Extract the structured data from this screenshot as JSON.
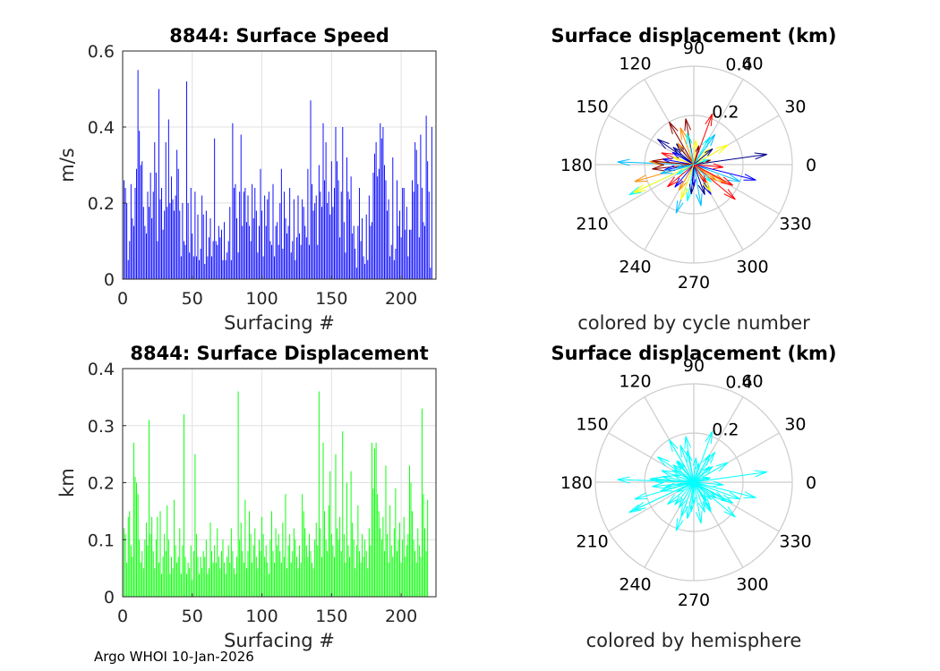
{
  "footer": "Argo WHOI 10-Jan-2026",
  "chart_data": [
    {
      "type": "bar",
      "title": "8844: Surface Speed",
      "xlabel": "Surfacing #",
      "ylabel": "m/s",
      "xlim": [
        0,
        225
      ],
      "ylim": [
        0,
        0.6
      ],
      "xticks": [
        "0",
        "50",
        "100",
        "150",
        "200"
      ],
      "xtick_values": [
        0,
        50,
        100,
        150,
        200
      ],
      "yticks": [
        "0",
        "0.2",
        "0.4",
        "0.6"
      ],
      "ytick_values": [
        0,
        0.2,
        0.4,
        0.6
      ],
      "color": "#0000ff",
      "values": [
        0.26,
        0.24,
        0.2,
        0.05,
        0.1,
        0.25,
        0.16,
        0.14,
        0.24,
        0.29,
        0.55,
        0.39,
        0.3,
        0.31,
        0.19,
        0.14,
        0.12,
        0.23,
        0.19,
        0.28,
        0.16,
        0.23,
        0.36,
        0.28,
        0.1,
        0.5,
        0.21,
        0.24,
        0.13,
        0.18,
        0.36,
        0.19,
        0.42,
        0.2,
        0.27,
        0.21,
        0.18,
        0.22,
        0.34,
        0.29,
        0.18,
        0.06,
        0.2,
        0.1,
        0.09,
        0.52,
        0.2,
        0.07,
        0.24,
        0.12,
        0.06,
        0.23,
        0.06,
        0.17,
        0.05,
        0.08,
        0.22,
        0.17,
        0.04,
        0.18,
        0.06,
        0.11,
        0.16,
        0.06,
        0.1,
        0.37,
        0.1,
        0.09,
        0.14,
        0.11,
        0.13,
        0.05,
        0.15,
        0.05,
        0.07,
        0.1,
        0.19,
        0.05,
        0.41,
        0.24,
        0.25,
        0.16,
        0.07,
        0.23,
        0.38,
        0.14,
        0.23,
        0.24,
        0.15,
        0.22,
        0.14,
        0.1,
        0.25,
        0.16,
        0.24,
        0.18,
        0.07,
        0.14,
        0.29,
        0.18,
        0.06,
        0.22,
        0.14,
        0.21,
        0.23,
        0.1,
        0.09,
        0.25,
        0.06,
        0.14,
        0.15,
        0.09,
        0.2,
        0.29,
        0.08,
        0.23,
        0.16,
        0.12,
        0.14,
        0.24,
        0.07,
        0.1,
        0.21,
        0.05,
        0.11,
        0.22,
        0.12,
        0.09,
        0.21,
        0.19,
        0.14,
        0.11,
        0.29,
        0.09,
        0.47,
        0.25,
        0.18,
        0.2,
        0.22,
        0.09,
        0.3,
        0.23,
        0.19,
        0.41,
        0.26,
        0.36,
        0.2,
        0.23,
        0.17,
        0.31,
        0.19,
        0.24,
        0.4,
        0.31,
        0.26,
        0.11,
        0.23,
        0.4,
        0.15,
        0.07,
        0.32,
        0.23,
        0.21,
        0.27,
        0.12,
        0.14,
        0.08,
        0.03,
        0.14,
        0.24,
        0.1,
        0.16,
        0.06,
        0.04,
        0.17,
        0.05,
        0.22,
        0.14,
        0.15,
        0.28,
        0.33,
        0.36,
        0.27,
        0.29,
        0.41,
        0.37,
        0.4,
        0.3,
        0.26,
        0.18,
        0.21,
        0.06,
        0.09,
        0.32,
        0.05,
        0.08,
        0.26,
        0.14,
        0.18,
        0.11,
        0.24,
        0.24,
        0.13,
        0.19,
        0.06,
        0.13,
        0.13,
        0.26,
        0.23,
        0.36,
        0.34,
        0.25,
        0.11,
        0.38,
        0.24,
        0.15,
        0.14,
        0.43,
        0.31,
        0.23,
        0.03,
        0.4
      ]
    },
    {
      "type": "bar",
      "title": "8844: Surface Displacement",
      "xlabel": "Surfacing #",
      "ylabel": "km",
      "xlim": [
        0,
        225
      ],
      "ylim": [
        0,
        0.4
      ],
      "xticks": [
        "0",
        "50",
        "100",
        "150",
        "200"
      ],
      "xtick_values": [
        0,
        50,
        100,
        150,
        200
      ],
      "yticks": [
        "0",
        "0.1",
        "0.2",
        "0.3",
        "0.4"
      ],
      "ytick_values": [
        0,
        0.1,
        0.2,
        0.3,
        0.4
      ],
      "color": "#00ff00",
      "values": [
        0.12,
        0.11,
        0.06,
        0.14,
        0.15,
        0.09,
        0.07,
        0.27,
        0.21,
        0.2,
        0.18,
        0.1,
        0.06,
        0.08,
        0.05,
        0.1,
        0.13,
        0.09,
        0.31,
        0.11,
        0.14,
        0.08,
        0.05,
        0.1,
        0.14,
        0.06,
        0.15,
        0.04,
        0.07,
        0.11,
        0.08,
        0.16,
        0.1,
        0.04,
        0.07,
        0.05,
        0.17,
        0.09,
        0.06,
        0.07,
        0.12,
        0.04,
        0.09,
        0.32,
        0.07,
        0.04,
        0.06,
        0.05,
        0.09,
        0.03,
        0.08,
        0.25,
        0.11,
        0.07,
        0.04,
        0.07,
        0.05,
        0.08,
        0.07,
        0.1,
        0.04,
        0.05,
        0.13,
        0.08,
        0.06,
        0.09,
        0.06,
        0.12,
        0.07,
        0.05,
        0.08,
        0.1,
        0.06,
        0.04,
        0.07,
        0.09,
        0.06,
        0.12,
        0.08,
        0.05,
        0.04,
        0.07,
        0.36,
        0.1,
        0.13,
        0.08,
        0.06,
        0.17,
        0.05,
        0.08,
        0.15,
        0.11,
        0.06,
        0.09,
        0.12,
        0.07,
        0.05,
        0.1,
        0.08,
        0.14,
        0.11,
        0.07,
        0.09,
        0.06,
        0.04,
        0.1,
        0.15,
        0.08,
        0.06,
        0.12,
        0.09,
        0.11,
        0.08,
        0.06,
        0.13,
        0.07,
        0.18,
        0.05,
        0.09,
        0.11,
        0.06,
        0.08,
        0.12,
        0.1,
        0.07,
        0.05,
        0.09,
        0.06,
        0.18,
        0.15,
        0.12,
        0.09,
        0.07,
        0.11,
        0.08,
        0.06,
        0.05,
        0.1,
        0.13,
        0.09,
        0.36,
        0.12,
        0.07,
        0.27,
        0.15,
        0.1,
        0.08,
        0.16,
        0.22,
        0.11,
        0.09,
        0.07,
        0.25,
        0.12,
        0.1,
        0.14,
        0.08,
        0.29,
        0.11,
        0.06,
        0.2,
        0.09,
        0.07,
        0.22,
        0.13,
        0.1,
        0.05,
        0.09,
        0.16,
        0.08,
        0.06,
        0.11,
        0.07,
        0.1,
        0.08,
        0.05,
        0.12,
        0.09,
        0.27,
        0.19,
        0.26,
        0.27,
        0.18,
        0.15,
        0.12,
        0.1,
        0.14,
        0.08,
        0.23,
        0.11,
        0.06,
        0.16,
        0.09,
        0.07,
        0.12,
        0.19,
        0.08,
        0.1,
        0.13,
        0.06,
        0.1,
        0.14,
        0.07,
        0.09,
        0.11,
        0.23,
        0.2,
        0.15,
        0.1,
        0.08,
        0.06,
        0.12,
        0.09,
        0.07,
        0.33,
        0.18,
        0.12,
        0.08,
        0.17
      ]
    },
    {
      "type": "polar",
      "title": "Surface displacement (km)",
      "caption": "colored by cycle number",
      "rmax": 0.4,
      "rticks": [
        "0.2",
        "0.4"
      ],
      "rtick_values": [
        0.2,
        0.4
      ],
      "angle_ticks": [
        "0",
        "30",
        "60",
        "90",
        "120",
        "150",
        "180",
        "210",
        "240",
        "270",
        "300",
        "330"
      ],
      "colors": [
        "#00008b",
        "#0000ff",
        "#00bfff",
        "#00ffff",
        "#ffff00",
        "#ff8c00",
        "#ff0000",
        "#8b0000"
      ],
      "vectors": [
        [
          0.3,
          8
        ],
        [
          0.26,
          -14
        ],
        [
          0.31,
          178
        ],
        [
          0.29,
          -155
        ],
        [
          0.27,
          205
        ],
        [
          0.25,
          196
        ],
        [
          0.22,
          70
        ],
        [
          0.2,
          120
        ],
        [
          0.18,
          145
        ],
        [
          0.14,
          -60
        ],
        [
          0.21,
          -110
        ],
        [
          0.13,
          60
        ],
        [
          0.16,
          30
        ],
        [
          0.15,
          -30
        ],
        [
          0.22,
          -40
        ],
        [
          0.19,
          100
        ],
        [
          0.11,
          130
        ],
        [
          0.13,
          170
        ],
        [
          0.17,
          -80
        ],
        [
          0.15,
          -100
        ],
        [
          0.09,
          45
        ],
        [
          0.12,
          -120
        ],
        [
          0.14,
          160
        ],
        [
          0.17,
          186
        ],
        [
          0.13,
          -70
        ],
        [
          0.12,
          -130
        ],
        [
          0.2,
          -20
        ],
        [
          0.08,
          -150
        ],
        [
          0.1,
          85
        ],
        [
          0.18,
          176
        ],
        [
          0.12,
          -5
        ],
        [
          0.07,
          15
        ],
        [
          0.11,
          140
        ],
        [
          0.09,
          -90
        ],
        [
          0.15,
          55
        ],
        [
          0.1,
          -45
        ],
        [
          0.13,
          -58
        ],
        [
          0.16,
          110
        ],
        [
          0.14,
          -140
        ],
        [
          0.17,
          175
        ],
        [
          0.1,
          40
        ],
        [
          0.12,
          190
        ],
        [
          0.07,
          -170
        ],
        [
          0.13,
          102
        ],
        [
          0.09,
          160
        ],
        [
          0.11,
          -35
        ],
        [
          0.18,
          -28
        ],
        [
          0.08,
          75
        ],
        [
          0.12,
          -95
        ],
        [
          0.1,
          150
        ],
        [
          0.14,
          -165
        ],
        [
          0.06,
          20
        ],
        [
          0.15,
          -110
        ],
        [
          0.11,
          127
        ],
        [
          0.09,
          -55
        ]
      ]
    },
    {
      "type": "polar",
      "title": "Surface displacement (km)",
      "caption": "colored by hemisphere",
      "rmax": 0.4,
      "rticks": [
        "0.2",
        "0.4"
      ],
      "rtick_values": [
        0.2,
        0.4
      ],
      "angle_ticks": [
        "0",
        "30",
        "60",
        "90",
        "120",
        "150",
        "180",
        "210",
        "240",
        "270",
        "300",
        "330"
      ],
      "colors": [
        "#00ffff"
      ],
      "vectors": [
        [
          0.3,
          8
        ],
        [
          0.26,
          -14
        ],
        [
          0.31,
          178
        ],
        [
          0.29,
          -155
        ],
        [
          0.27,
          205
        ],
        [
          0.25,
          196
        ],
        [
          0.22,
          70
        ],
        [
          0.2,
          120
        ],
        [
          0.18,
          145
        ],
        [
          0.14,
          -60
        ],
        [
          0.21,
          -110
        ],
        [
          0.13,
          60
        ],
        [
          0.16,
          30
        ],
        [
          0.15,
          -30
        ],
        [
          0.22,
          -40
        ],
        [
          0.19,
          100
        ],
        [
          0.11,
          130
        ],
        [
          0.13,
          170
        ],
        [
          0.17,
          -80
        ],
        [
          0.15,
          -100
        ],
        [
          0.09,
          45
        ],
        [
          0.12,
          -120
        ],
        [
          0.14,
          160
        ],
        [
          0.17,
          186
        ],
        [
          0.13,
          -70
        ],
        [
          0.12,
          -130
        ],
        [
          0.2,
          -20
        ],
        [
          0.08,
          -150
        ],
        [
          0.1,
          85
        ],
        [
          0.18,
          176
        ],
        [
          0.12,
          -5
        ],
        [
          0.07,
          15
        ],
        [
          0.11,
          140
        ],
        [
          0.09,
          -90
        ],
        [
          0.15,
          55
        ],
        [
          0.1,
          -45
        ],
        [
          0.13,
          -58
        ],
        [
          0.16,
          110
        ],
        [
          0.14,
          -140
        ],
        [
          0.17,
          175
        ],
        [
          0.1,
          40
        ],
        [
          0.12,
          190
        ],
        [
          0.07,
          -170
        ],
        [
          0.13,
          102
        ],
        [
          0.09,
          160
        ],
        [
          0.11,
          -35
        ],
        [
          0.18,
          -28
        ],
        [
          0.08,
          75
        ],
        [
          0.12,
          -95
        ],
        [
          0.1,
          150
        ],
        [
          0.14,
          -165
        ],
        [
          0.06,
          20
        ],
        [
          0.15,
          -110
        ],
        [
          0.11,
          127
        ],
        [
          0.09,
          -55
        ]
      ]
    }
  ]
}
